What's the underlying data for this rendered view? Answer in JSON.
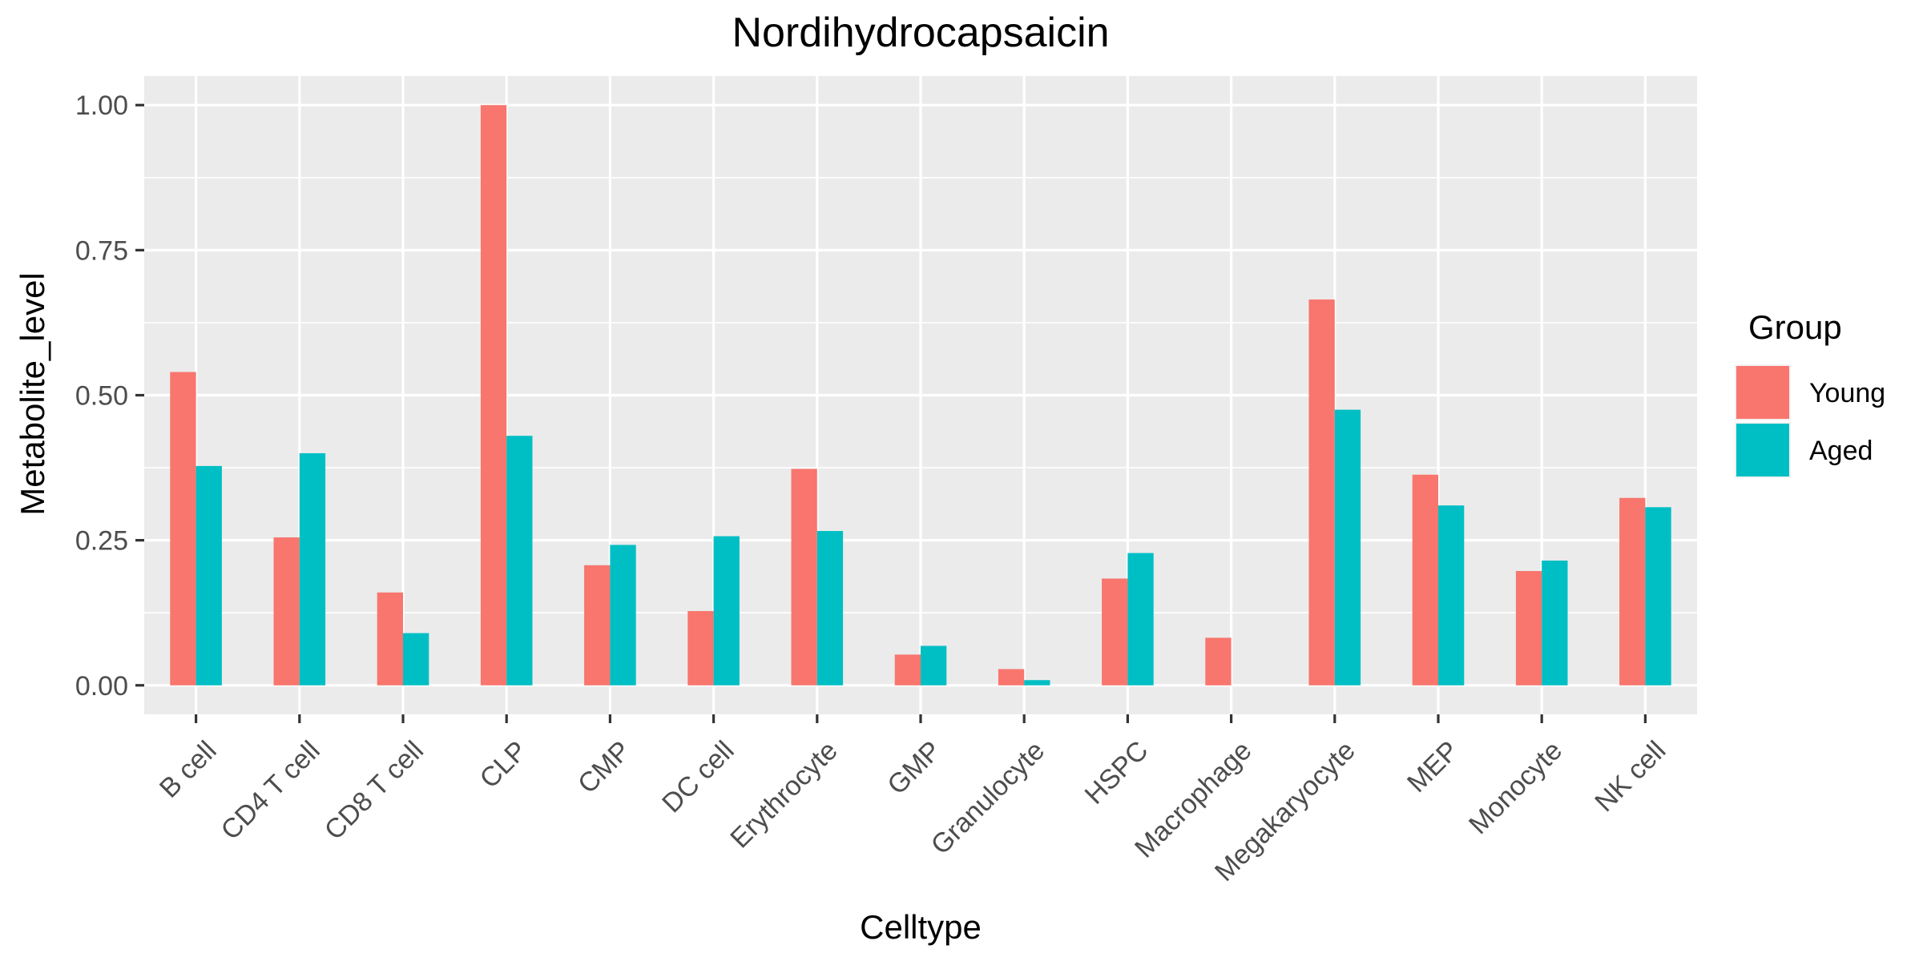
{
  "chart_data": {
    "type": "bar",
    "title": "Nordihydrocapsaicin",
    "xlabel": "Celltype",
    "ylabel": "Metabolite_level",
    "categories": [
      "B cell",
      "CD4 T cell",
      "CD8 T cell",
      "CLP",
      "CMP",
      "DC cell",
      "Erythrocyte",
      "GMP",
      "Granulocyte",
      "HSPC",
      "Macrophage",
      "Megakaryocyte",
      "MEP",
      "Monocyte",
      "NK cell"
    ],
    "series": [
      {
        "name": "Young",
        "color": "#F8766D",
        "values": [
          0.54,
          0.255,
          0.16,
          1.0,
          0.207,
          0.128,
          0.373,
          0.053,
          0.028,
          0.184,
          0.082,
          0.665,
          0.363,
          0.197,
          0.323
        ]
      },
      {
        "name": "Aged",
        "color": "#00BFC4",
        "values": [
          0.378,
          0.4,
          0.09,
          0.43,
          0.242,
          0.257,
          0.266,
          0.068,
          0.009,
          0.228,
          0.0,
          0.475,
          0.31,
          0.215,
          0.307
        ]
      }
    ],
    "ylim": [
      -0.05,
      1.05
    ],
    "yticks": [
      0,
      0.25,
      0.5,
      0.75,
      1.0
    ],
    "ytick_labels": [
      "0.00",
      "0.25",
      "0.50",
      "0.75",
      "1.00"
    ],
    "grid": true,
    "legend": {
      "title": "Group",
      "position": "right"
    },
    "panel_background": "#EBEBEB",
    "grid_color": "#FFFFFF"
  }
}
